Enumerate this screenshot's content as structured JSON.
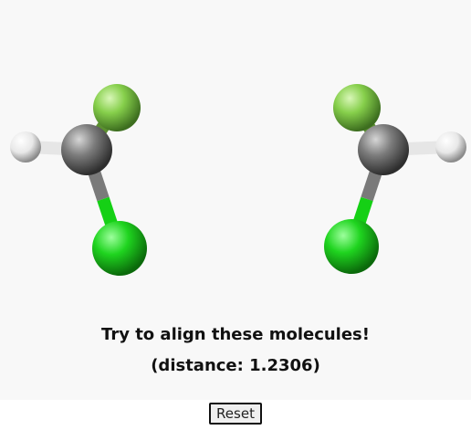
{
  "message": {
    "prompt": "Try to align these molecules!",
    "distance_text": "(distance: 1.2306)"
  },
  "controls": {
    "reset_label": "Reset"
  },
  "molecules": [
    {
      "name": "left-molecule",
      "atoms": [
        "C",
        "H",
        "F",
        "Cl"
      ]
    },
    {
      "name": "right-molecule",
      "atoms": [
        "C",
        "H",
        "F",
        "Cl"
      ]
    }
  ],
  "colors": {
    "carbon": "#8a8a8a",
    "hydrogen": "#ffffff",
    "fluorine": "#8fd85a",
    "chlorine": "#1fd81f",
    "background": "#f8f8f8"
  }
}
